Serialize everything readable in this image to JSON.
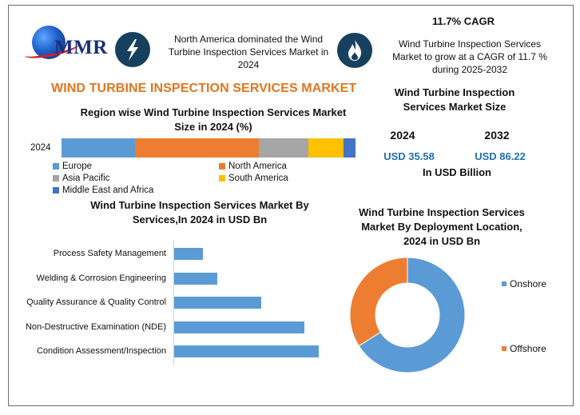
{
  "header": {
    "logo_text": "MMR",
    "north_america_note": "North America dominated the Wind Turbine Inspection Services Market in 2024",
    "cagr_title": "11.7% CAGR",
    "cagr_note": "Wind Turbine Inspection Services Market to grow at a CAGR of 11.7 % during 2025-2032",
    "icons": [
      "lightning-icon",
      "flame-icon"
    ],
    "icon_bg_color": "#17405f"
  },
  "main_title": "WIND TURBINE INSPECTION SERVICES MARKET",
  "market_size": {
    "title": "Wind Turbine Inspection Services Market Size",
    "year1": "2024",
    "year2": "2032",
    "value1": "USD 35.58",
    "value2": "USD 86.22",
    "unit": "In USD Billion"
  },
  "chart_data": [
    {
      "type": "bar",
      "orientation": "horizontal-stacked",
      "title": "Region wise Wind Turbine Inspection Services  Market Size in 2024 (%)",
      "categories": [
        "2024"
      ],
      "series": [
        {
          "name": "Europe",
          "values": [
            25
          ],
          "color": "#5b9bd5"
        },
        {
          "name": "North America",
          "values": [
            42
          ],
          "color": "#ed7d31"
        },
        {
          "name": "Asia Pacific",
          "values": [
            17
          ],
          "color": "#a5a5a5"
        },
        {
          "name": "South America",
          "values": [
            12
          ],
          "color": "#ffc000"
        },
        {
          "name": "Middle East and Africa",
          "values": [
            4
          ],
          "color": "#4472c4"
        }
      ],
      "xlim": [
        0,
        100
      ],
      "legend": "bottom"
    },
    {
      "type": "bar",
      "orientation": "horizontal",
      "title": "Wind Turbine Inspection Services  Market By Services,In 2024 in USD Bn",
      "categories": [
        "Process Safety Management",
        "Welding & Corrosion Engineering",
        "Quality Assurance & Quality Control",
        "Non-Destructive Examination (NDE)",
        "Condition Assessment/Inspection"
      ],
      "values": [
        2.0,
        3.0,
        6.0,
        9.0,
        10.0
      ],
      "color": "#5b9bd5",
      "xlim": [
        0,
        14
      ]
    },
    {
      "type": "pie",
      "style": "donut",
      "title": "Wind Turbine Inspection Services Market By Deployment Location, 2024 in USD Bn",
      "labels": [
        "Onshore",
        "Offshore"
      ],
      "values": [
        66,
        34
      ],
      "colors": [
        "#5b9bd5",
        "#ed7d31"
      ],
      "legend": "right"
    }
  ]
}
